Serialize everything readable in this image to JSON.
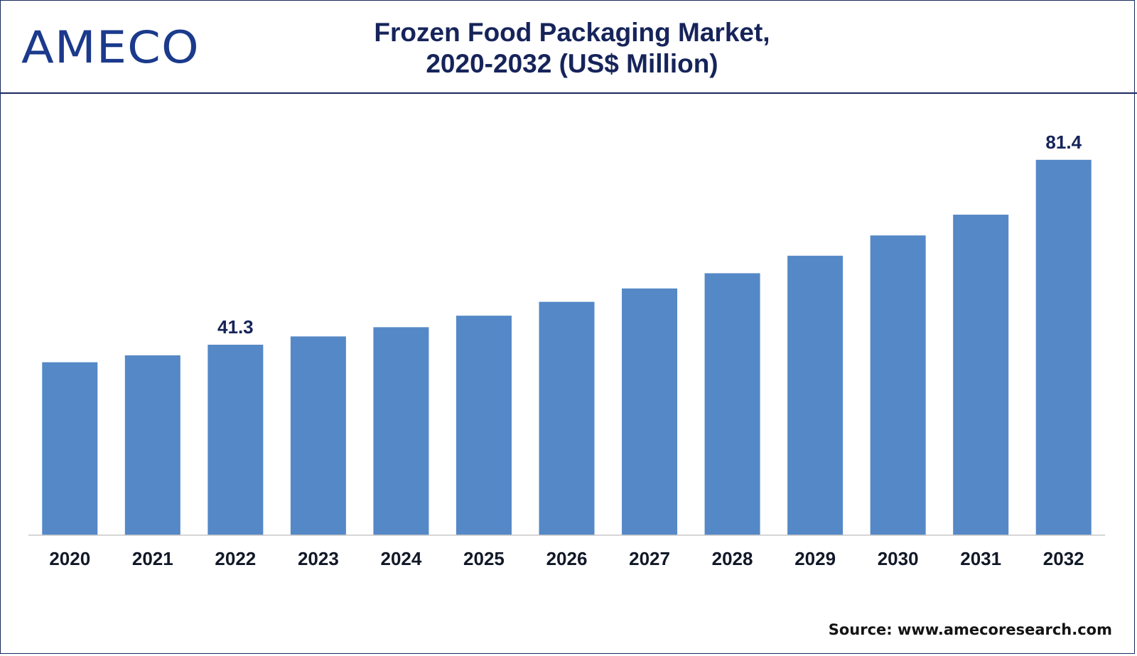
{
  "brand": {
    "logo_text": "AMECO"
  },
  "source": "Source: www.amecoresearch.com",
  "colors": {
    "bar": "#5588c6",
    "title": "#16245a",
    "logo": "#1b3a8c",
    "frame": "#1a2a5e"
  },
  "chart_data": {
    "type": "bar",
    "title_line1": "Frozen Food Packaging Market,",
    "title_line2": "2020-2032 (US$ Million)",
    "categories": [
      "2020",
      "2021",
      "2022",
      "2023",
      "2024",
      "2025",
      "2026",
      "2027",
      "2028",
      "2029",
      "2030",
      "2031",
      "2032"
    ],
    "values": [
      37.5,
      39.0,
      41.3,
      43.1,
      45.1,
      47.6,
      50.6,
      53.5,
      56.8,
      60.6,
      65.0,
      69.5,
      81.4
    ],
    "data_labels": {
      "2022": "41.3",
      "2032": "81.4"
    },
    "ylim": [
      0,
      86
    ],
    "xlabel": "",
    "ylabel": "",
    "grid": false,
    "legend": "none"
  }
}
